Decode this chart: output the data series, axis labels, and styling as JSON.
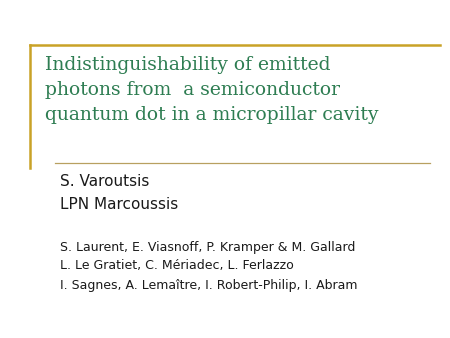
{
  "title_line1": "Indistinguishability of emitted",
  "title_line2": "photons from  a semiconductor",
  "title_line3": "quantum dot in a micropillar cavity",
  "title_color": "#2e7d52",
  "author1": "S. Varoutsis",
  "author2": "LPN Marcoussis",
  "coauthors_line1": "S. Laurent, E. Viasnoff, P. Kramper & M. Gallard",
  "coauthors_line2": "L. Le Gratiet, C. Mériadec, L. Ferlazzo",
  "coauthors_line3": "I. Sagnes, A. Lemaître, I. Robert-Philip, I. Abram",
  "bg_color": "#ffffff",
  "border_color": "#c9a227",
  "text_color_authors": "#1a1a1a",
  "text_color_coauthors": "#1a1a1a",
  "separator_color": "#b8a060",
  "title_fontsize": 13.5,
  "author_fontsize": 11.0,
  "coauthor_fontsize": 9.0
}
